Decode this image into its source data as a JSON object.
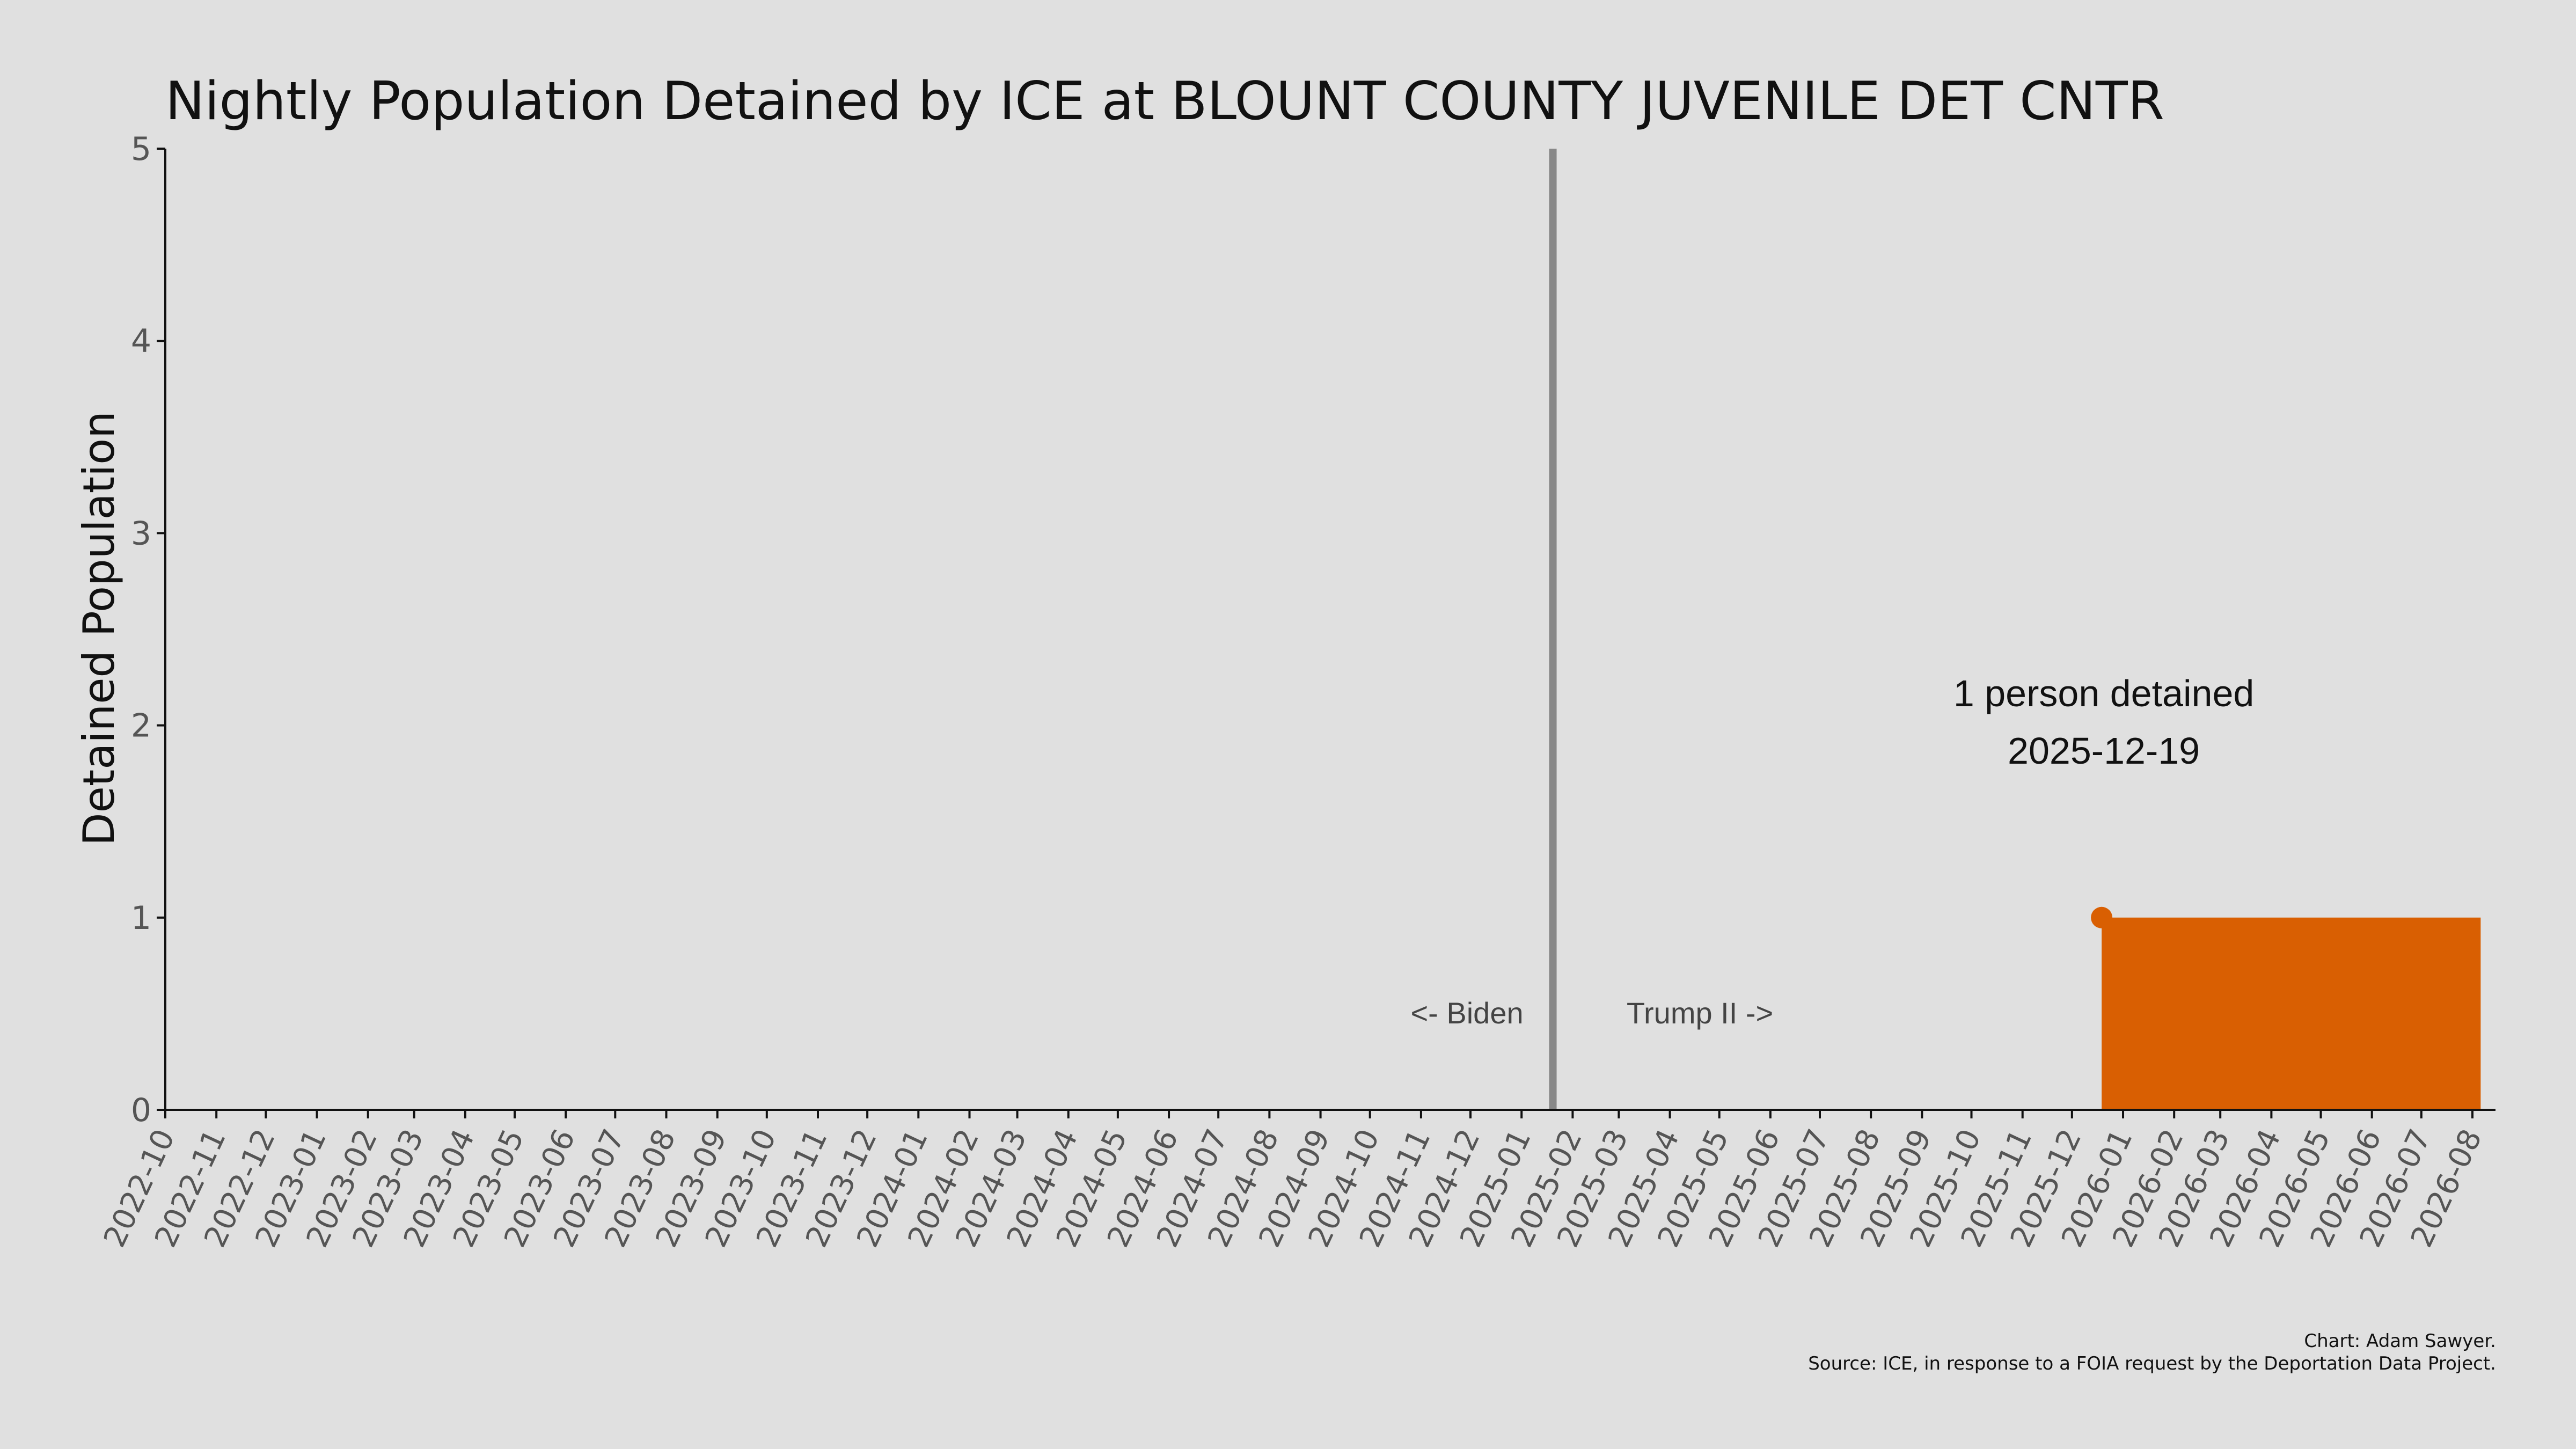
{
  "chart_data": {
    "type": "area",
    "title": "Nightly Population Detained by ICE at BLOUNT COUNTY JUVENILE DET CNTR",
    "xlabel": "",
    "ylabel": "Detained Population",
    "ylim": [
      0,
      5
    ],
    "yticks": [
      "0",
      "1",
      "2",
      "3",
      "4",
      "5"
    ],
    "xlim": [
      "2022-10-01",
      "2026-08-15"
    ],
    "x_tick_labels": [
      "2022-10",
      "2022-11",
      "2022-12",
      "2023-01",
      "2023-02",
      "2023-03",
      "2023-04",
      "2023-05",
      "2023-06",
      "2023-07",
      "2023-08",
      "2023-09",
      "2023-10",
      "2023-11",
      "2023-12",
      "2024-01",
      "2024-02",
      "2024-03",
      "2024-04",
      "2024-05",
      "2024-06",
      "2024-07",
      "2024-08",
      "2024-09",
      "2024-10",
      "2024-11",
      "2024-12",
      "2025-01",
      "2025-02",
      "2025-03",
      "2025-04",
      "2025-05",
      "2025-06",
      "2025-07",
      "2025-08",
      "2025-09",
      "2025-10",
      "2025-11",
      "2025-12",
      "2026-01",
      "2026-02",
      "2026-03",
      "2026-04",
      "2026-05",
      "2026-06",
      "2026-07",
      "2026-08"
    ],
    "series": [
      {
        "x": [
          "2025-12-19",
          "2026-08-06"
        ],
        "y": [
          1,
          1
        ],
        "color": "#d95f02"
      }
    ],
    "highlight_point": {
      "x": "2025-12-19",
      "y": 1,
      "color": "#d95f02"
    },
    "vline": {
      "x": "2025-01-20",
      "color": "#888888"
    },
    "era_labels": {
      "left": "<- Biden",
      "right": "Trump II ->"
    },
    "annotation": {
      "line1": "1 person detained",
      "line2": "2025-12-19"
    },
    "grid": false,
    "legend": "none"
  },
  "caption": {
    "line1": "Chart: Adam Sawyer.",
    "line2": "Source: ICE, in response to a FOIA request by the Deportation Data Project."
  }
}
